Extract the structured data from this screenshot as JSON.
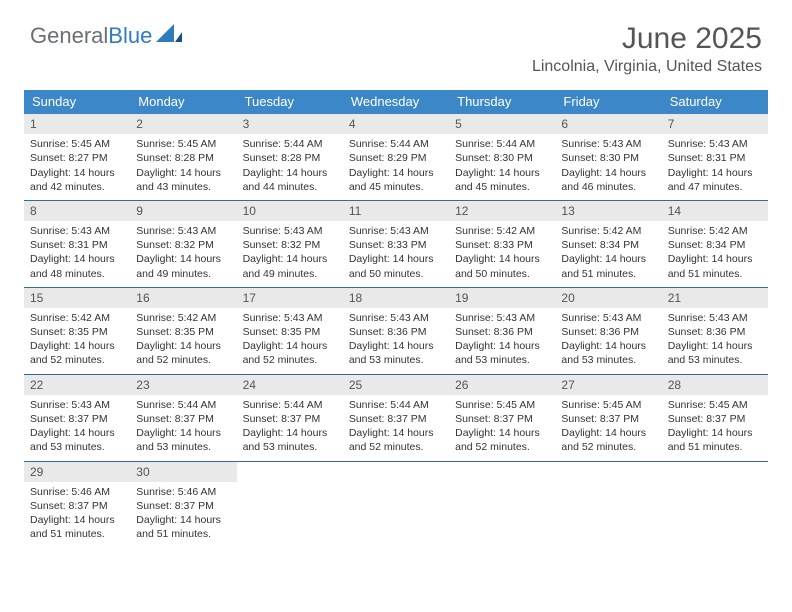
{
  "brand": {
    "general": "General",
    "blue": "Blue"
  },
  "header": {
    "title": "June 2025",
    "location": "Lincolnia, Virginia, United States",
    "title_fontsize": 30,
    "title_color": "#555555",
    "location_fontsize": 16,
    "location_color": "#555555"
  },
  "colors": {
    "header_bg": "#3b87c8",
    "header_text": "#ffffff",
    "daynum_bg": "#e9e9e9",
    "daynum_text": "#555555",
    "week_divider": "#2f6aa3",
    "body_text": "#333333",
    "background": "#ffffff",
    "logo_general": "#6a6f73",
    "logo_blue": "#2f7bbf"
  },
  "layout": {
    "columns": 7,
    "cell_fontsize": 10.5,
    "weekday_fontsize": 13,
    "daynum_fontsize": 12
  },
  "weekdays": [
    "Sunday",
    "Monday",
    "Tuesday",
    "Wednesday",
    "Thursday",
    "Friday",
    "Saturday"
  ],
  "days": [
    {
      "n": "1",
      "sr": "Sunrise: 5:45 AM",
      "ss": "Sunset: 8:27 PM",
      "dl1": "Daylight: 14 hours",
      "dl2": "and 42 minutes."
    },
    {
      "n": "2",
      "sr": "Sunrise: 5:45 AM",
      "ss": "Sunset: 8:28 PM",
      "dl1": "Daylight: 14 hours",
      "dl2": "and 43 minutes."
    },
    {
      "n": "3",
      "sr": "Sunrise: 5:44 AM",
      "ss": "Sunset: 8:28 PM",
      "dl1": "Daylight: 14 hours",
      "dl2": "and 44 minutes."
    },
    {
      "n": "4",
      "sr": "Sunrise: 5:44 AM",
      "ss": "Sunset: 8:29 PM",
      "dl1": "Daylight: 14 hours",
      "dl2": "and 45 minutes."
    },
    {
      "n": "5",
      "sr": "Sunrise: 5:44 AM",
      "ss": "Sunset: 8:30 PM",
      "dl1": "Daylight: 14 hours",
      "dl2": "and 45 minutes."
    },
    {
      "n": "6",
      "sr": "Sunrise: 5:43 AM",
      "ss": "Sunset: 8:30 PM",
      "dl1": "Daylight: 14 hours",
      "dl2": "and 46 minutes."
    },
    {
      "n": "7",
      "sr": "Sunrise: 5:43 AM",
      "ss": "Sunset: 8:31 PM",
      "dl1": "Daylight: 14 hours",
      "dl2": "and 47 minutes."
    },
    {
      "n": "8",
      "sr": "Sunrise: 5:43 AM",
      "ss": "Sunset: 8:31 PM",
      "dl1": "Daylight: 14 hours",
      "dl2": "and 48 minutes."
    },
    {
      "n": "9",
      "sr": "Sunrise: 5:43 AM",
      "ss": "Sunset: 8:32 PM",
      "dl1": "Daylight: 14 hours",
      "dl2": "and 49 minutes."
    },
    {
      "n": "10",
      "sr": "Sunrise: 5:43 AM",
      "ss": "Sunset: 8:32 PM",
      "dl1": "Daylight: 14 hours",
      "dl2": "and 49 minutes."
    },
    {
      "n": "11",
      "sr": "Sunrise: 5:43 AM",
      "ss": "Sunset: 8:33 PM",
      "dl1": "Daylight: 14 hours",
      "dl2": "and 50 minutes."
    },
    {
      "n": "12",
      "sr": "Sunrise: 5:42 AM",
      "ss": "Sunset: 8:33 PM",
      "dl1": "Daylight: 14 hours",
      "dl2": "and 50 minutes."
    },
    {
      "n": "13",
      "sr": "Sunrise: 5:42 AM",
      "ss": "Sunset: 8:34 PM",
      "dl1": "Daylight: 14 hours",
      "dl2": "and 51 minutes."
    },
    {
      "n": "14",
      "sr": "Sunrise: 5:42 AM",
      "ss": "Sunset: 8:34 PM",
      "dl1": "Daylight: 14 hours",
      "dl2": "and 51 minutes."
    },
    {
      "n": "15",
      "sr": "Sunrise: 5:42 AM",
      "ss": "Sunset: 8:35 PM",
      "dl1": "Daylight: 14 hours",
      "dl2": "and 52 minutes."
    },
    {
      "n": "16",
      "sr": "Sunrise: 5:42 AM",
      "ss": "Sunset: 8:35 PM",
      "dl1": "Daylight: 14 hours",
      "dl2": "and 52 minutes."
    },
    {
      "n": "17",
      "sr": "Sunrise: 5:43 AM",
      "ss": "Sunset: 8:35 PM",
      "dl1": "Daylight: 14 hours",
      "dl2": "and 52 minutes."
    },
    {
      "n": "18",
      "sr": "Sunrise: 5:43 AM",
      "ss": "Sunset: 8:36 PM",
      "dl1": "Daylight: 14 hours",
      "dl2": "and 53 minutes."
    },
    {
      "n": "19",
      "sr": "Sunrise: 5:43 AM",
      "ss": "Sunset: 8:36 PM",
      "dl1": "Daylight: 14 hours",
      "dl2": "and 53 minutes."
    },
    {
      "n": "20",
      "sr": "Sunrise: 5:43 AM",
      "ss": "Sunset: 8:36 PM",
      "dl1": "Daylight: 14 hours",
      "dl2": "and 53 minutes."
    },
    {
      "n": "21",
      "sr": "Sunrise: 5:43 AM",
      "ss": "Sunset: 8:36 PM",
      "dl1": "Daylight: 14 hours",
      "dl2": "and 53 minutes."
    },
    {
      "n": "22",
      "sr": "Sunrise: 5:43 AM",
      "ss": "Sunset: 8:37 PM",
      "dl1": "Daylight: 14 hours",
      "dl2": "and 53 minutes."
    },
    {
      "n": "23",
      "sr": "Sunrise: 5:44 AM",
      "ss": "Sunset: 8:37 PM",
      "dl1": "Daylight: 14 hours",
      "dl2": "and 53 minutes."
    },
    {
      "n": "24",
      "sr": "Sunrise: 5:44 AM",
      "ss": "Sunset: 8:37 PM",
      "dl1": "Daylight: 14 hours",
      "dl2": "and 53 minutes."
    },
    {
      "n": "25",
      "sr": "Sunrise: 5:44 AM",
      "ss": "Sunset: 8:37 PM",
      "dl1": "Daylight: 14 hours",
      "dl2": "and 52 minutes."
    },
    {
      "n": "26",
      "sr": "Sunrise: 5:45 AM",
      "ss": "Sunset: 8:37 PM",
      "dl1": "Daylight: 14 hours",
      "dl2": "and 52 minutes."
    },
    {
      "n": "27",
      "sr": "Sunrise: 5:45 AM",
      "ss": "Sunset: 8:37 PM",
      "dl1": "Daylight: 14 hours",
      "dl2": "and 52 minutes."
    },
    {
      "n": "28",
      "sr": "Sunrise: 5:45 AM",
      "ss": "Sunset: 8:37 PM",
      "dl1": "Daylight: 14 hours",
      "dl2": "and 51 minutes."
    },
    {
      "n": "29",
      "sr": "Sunrise: 5:46 AM",
      "ss": "Sunset: 8:37 PM",
      "dl1": "Daylight: 14 hours",
      "dl2": "and 51 minutes."
    },
    {
      "n": "30",
      "sr": "Sunrise: 5:46 AM",
      "ss": "Sunset: 8:37 PM",
      "dl1": "Daylight: 14 hours",
      "dl2": "and 51 minutes."
    }
  ],
  "first_weekday_index": 0,
  "total_days": 30
}
